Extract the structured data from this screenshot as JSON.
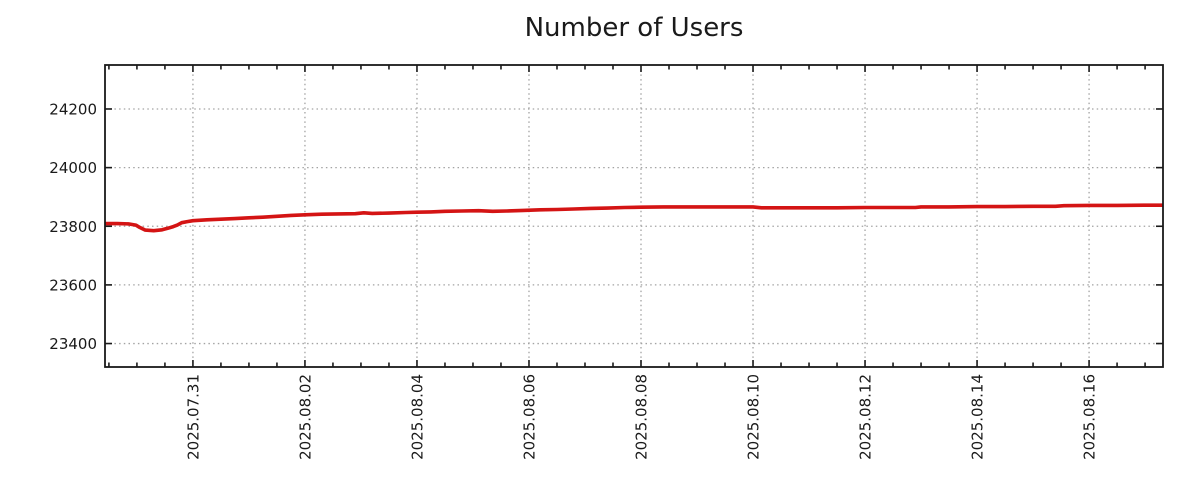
{
  "chart_data": {
    "type": "line",
    "title": "Number of Users",
    "xlabel": "",
    "ylabel": "",
    "legend": "none",
    "grid": {
      "style": "dotted",
      "color": "#a3a3a3",
      "on_major_ticks_only": true
    },
    "colors": {
      "axis": "#1a1a1a",
      "text": "#1a1a1a",
      "background": "#ffffff"
    },
    "axes": {
      "x": {
        "kind": "time",
        "reference_date": "2025-07-31",
        "range_days": [
          -1.57,
          17.32
        ],
        "minor_tick_step_days": 0.5,
        "tick_label_rotation_deg": 90,
        "major_ticks": [
          {
            "t": 0,
            "label": "2025.07.31"
          },
          {
            "t": 2,
            "label": "2025.08.02"
          },
          {
            "t": 4,
            "label": "2025.08.04"
          },
          {
            "t": 6,
            "label": "2025.08.06"
          },
          {
            "t": 8,
            "label": "2025.08.08"
          },
          {
            "t": 10,
            "label": "2025.08.10"
          },
          {
            "t": 12,
            "label": "2025.08.12"
          },
          {
            "t": 14,
            "label": "2025.08.14"
          },
          {
            "t": 16,
            "label": "2025.08.16"
          }
        ]
      },
      "y": {
        "range": [
          23320,
          24350
        ],
        "major_ticks": [
          {
            "v": 23400,
            "label": "23400"
          },
          {
            "v": 23600,
            "label": "23600"
          },
          {
            "v": 23800,
            "label": "23800"
          },
          {
            "v": 24000,
            "label": "24000"
          },
          {
            "v": 24200,
            "label": "24200"
          }
        ]
      }
    },
    "series": [
      {
        "name": "Number of Users",
        "color": "#d41414",
        "line_width": 3.6,
        "points_format": [
          "days_since_2025-07-31",
          "users"
        ],
        "points": [
          [
            -1.57,
            23809
          ],
          [
            -1.35,
            23809
          ],
          [
            -1.15,
            23808
          ],
          [
            -1.02,
            23804
          ],
          [
            -0.95,
            23796
          ],
          [
            -0.85,
            23787
          ],
          [
            -0.7,
            23785
          ],
          [
            -0.55,
            23788
          ],
          [
            -0.45,
            23793
          ],
          [
            -0.35,
            23799
          ],
          [
            -0.28,
            23804
          ],
          [
            -0.2,
            23812
          ],
          [
            -0.1,
            23816
          ],
          [
            0.0,
            23819
          ],
          [
            0.25,
            23822
          ],
          [
            0.5,
            23824
          ],
          [
            0.75,
            23826
          ],
          [
            1.0,
            23829
          ],
          [
            1.25,
            23831
          ],
          [
            1.5,
            23834
          ],
          [
            1.75,
            23837
          ],
          [
            2.0,
            23839
          ],
          [
            2.3,
            23841
          ],
          [
            2.6,
            23842
          ],
          [
            2.9,
            23843
          ],
          [
            3.05,
            23846
          ],
          [
            3.2,
            23844
          ],
          [
            3.5,
            23845
          ],
          [
            3.8,
            23847
          ],
          [
            4.0,
            23848
          ],
          [
            4.25,
            23849
          ],
          [
            4.5,
            23851
          ],
          [
            4.8,
            23852
          ],
          [
            5.1,
            23853
          ],
          [
            5.35,
            23851
          ],
          [
            5.6,
            23852
          ],
          [
            5.9,
            23854
          ],
          [
            6.2,
            23856
          ],
          [
            6.5,
            23857
          ],
          [
            6.8,
            23859
          ],
          [
            7.1,
            23861
          ],
          [
            7.4,
            23862
          ],
          [
            7.7,
            23864
          ],
          [
            8.0,
            23865
          ],
          [
            8.4,
            23866
          ],
          [
            8.8,
            23866
          ],
          [
            9.2,
            23866
          ],
          [
            9.6,
            23866
          ],
          [
            10.0,
            23866
          ],
          [
            10.15,
            23863
          ],
          [
            10.6,
            23863
          ],
          [
            11.0,
            23863
          ],
          [
            11.5,
            23863
          ],
          [
            12.0,
            23864
          ],
          [
            12.5,
            23864
          ],
          [
            12.9,
            23864
          ],
          [
            13.0,
            23866
          ],
          [
            13.5,
            23866
          ],
          [
            14.0,
            23867
          ],
          [
            14.5,
            23867
          ],
          [
            15.0,
            23868
          ],
          [
            15.4,
            23868
          ],
          [
            15.55,
            23870
          ],
          [
            16.0,
            23871
          ],
          [
            16.5,
            23871
          ],
          [
            17.0,
            23872
          ],
          [
            17.32,
            23872
          ]
        ]
      }
    ]
  }
}
